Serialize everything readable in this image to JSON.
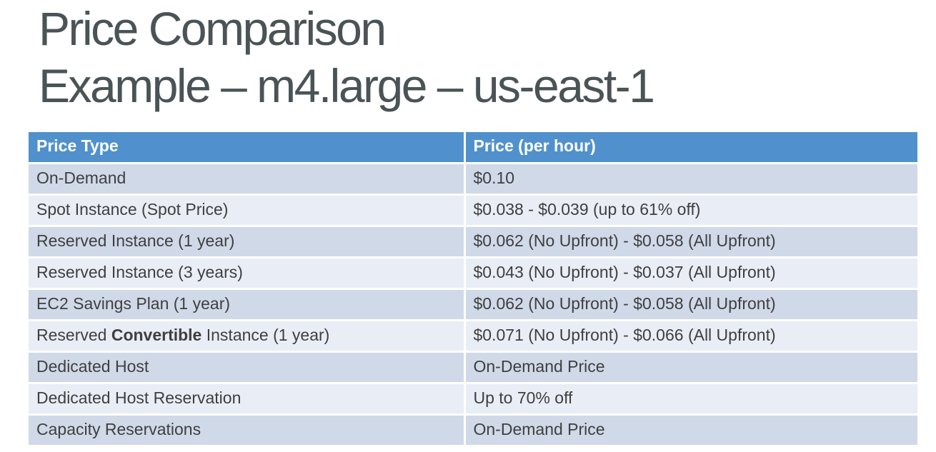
{
  "title": {
    "line1": "Price Comparison",
    "line2": "Example – m4.large – us-east-1"
  },
  "table": {
    "headers": [
      "Price Type",
      "Price (per hour)"
    ],
    "rows": [
      {
        "price_type": "On-Demand",
        "price": "$0.10"
      },
      {
        "price_type": "Spot Instance (Spot Price)",
        "price": "$0.038 - $0.039 (up to 61% off)"
      },
      {
        "price_type": "Reserved Instance (1 year)",
        "price": "$0.062 (No Upfront) - $0.058 (All Upfront)"
      },
      {
        "price_type": "Reserved Instance (3 years)",
        "price": "$0.043 (No Upfront) - $0.037 (All Upfront)"
      },
      {
        "price_type": "EC2 Savings Plan (1 year)",
        "price": "$0.062 (No Upfront) - $0.058 (All Upfront)"
      },
      {
        "price_type": "Reserved Convertible Instance (1 year)",
        "price_type_parts": [
          {
            "text": "Reserved ",
            "bold": false
          },
          {
            "text": "Convertible",
            "bold": true
          },
          {
            "text": " Instance (1 year)",
            "bold": false
          }
        ],
        "price": "$0.071 (No Upfront) - $0.066 (All Upfront)"
      },
      {
        "price_type": "Dedicated Host",
        "price": "On-Demand Price"
      },
      {
        "price_type": "Dedicated Host Reservation",
        "price": "Up to 70% off"
      },
      {
        "price_type": "Capacity Reservations",
        "price": "On-Demand Price"
      }
    ]
  },
  "colors": {
    "header_bg": "#5091cd",
    "row_dark": "#d0d9e8",
    "row_light": "#e9edf5",
    "header_text": "#ffffff",
    "body_text": "#3f3f3f",
    "title_text": "#4a5356"
  }
}
